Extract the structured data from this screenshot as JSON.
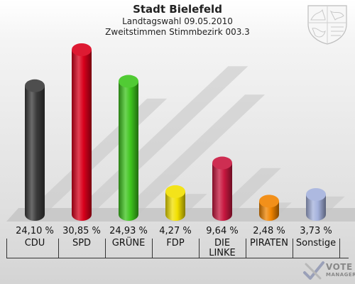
{
  "header": {
    "title": "Stadt Bielefeld",
    "subtitle": "Landtagswahl 09.05.2010",
    "subtitle2": "Zweitstimmen Stimmbezirk 003.3"
  },
  "chart_data": {
    "type": "bar",
    "categories": [
      "CDU",
      "SPD",
      "GRÜNE",
      "FDP",
      "DIE LINKE",
      "PIRATEN",
      "Sonstige"
    ],
    "values": [
      24.1,
      30.85,
      24.93,
      4.27,
      9.64,
      2.48,
      3.73
    ],
    "value_labels": [
      "24,10 %",
      "30,85 %",
      "24,93 %",
      "4,27 %",
      "9,64 %",
      "2,48 %",
      "3,73 %"
    ],
    "label_lines": [
      [
        "CDU"
      ],
      [
        "SPD"
      ],
      [
        "GRÜNE"
      ],
      [
        "FDP"
      ],
      [
        "DIE",
        "LINKE"
      ],
      [
        "PIRATEN"
      ],
      [
        "Sonstige"
      ]
    ],
    "colors": [
      "#3a3a3a",
      "#d9001b",
      "#3ec51d",
      "#f2e000",
      "#c8173f",
      "#f08400",
      "#a4b1dc"
    ],
    "ylim": [
      0,
      30.85
    ],
    "grid": false,
    "legend": "none"
  },
  "branding": {
    "logo_line1": "VOTE",
    "logo_line2": "MANAGER"
  }
}
